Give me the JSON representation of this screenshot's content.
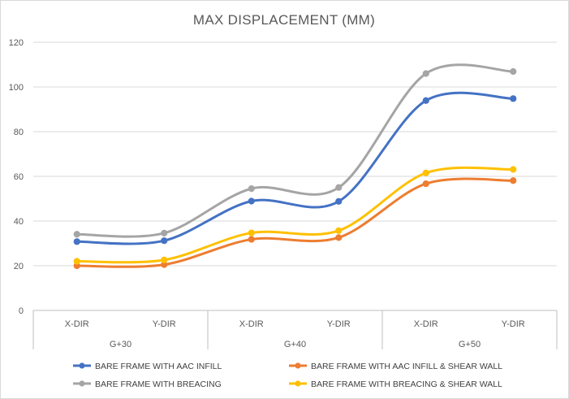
{
  "chart_data": {
    "type": "line",
    "title": "MAX DISPLACEMENT (MM)",
    "xlabel": "",
    "ylabel": "",
    "ylim": [
      0,
      120
    ],
    "yticks": [
      "0",
      "20",
      "40",
      "60",
      "80",
      "100",
      "120"
    ],
    "ytick_values": [
      0,
      20,
      40,
      60,
      80,
      100,
      120
    ],
    "grid": true,
    "legend_position": "bottom",
    "categories": [
      "X-DIR",
      "Y-DIR",
      "X-DIR",
      "Y-DIR",
      "X-DIR",
      "Y-DIR"
    ],
    "groups": [
      {
        "label": "G+30",
        "span": [
          0,
          1
        ]
      },
      {
        "label": "G+40",
        "span": [
          2,
          3
        ]
      },
      {
        "label": "G+50",
        "span": [
          4,
          5
        ]
      }
    ],
    "series": [
      {
        "name": "BARE FRAME WITH  AAC INFILL",
        "color": "#4472C4",
        "values": [
          30.8,
          31.2,
          48.9,
          48.8,
          93.9,
          94.8
        ]
      },
      {
        "name": "BARE FRAME WITH AAC INFILL & SHEAR WALL",
        "color": "#ED7D31",
        "values": [
          20.0,
          20.5,
          31.8,
          32.6,
          56.7,
          58.1
        ]
      },
      {
        "name": "BARE FRAME WITH BREACING",
        "color": "#A5A5A5",
        "values": [
          34.1,
          34.6,
          54.5,
          55.0,
          106.0,
          106.9
        ]
      },
      {
        "name": "BARE FRAME WITH  BREACING & SHEAR WALL",
        "color": "#FFC000",
        "values": [
          22.0,
          22.6,
          34.7,
          35.7,
          61.5,
          63.1
        ]
      }
    ]
  }
}
